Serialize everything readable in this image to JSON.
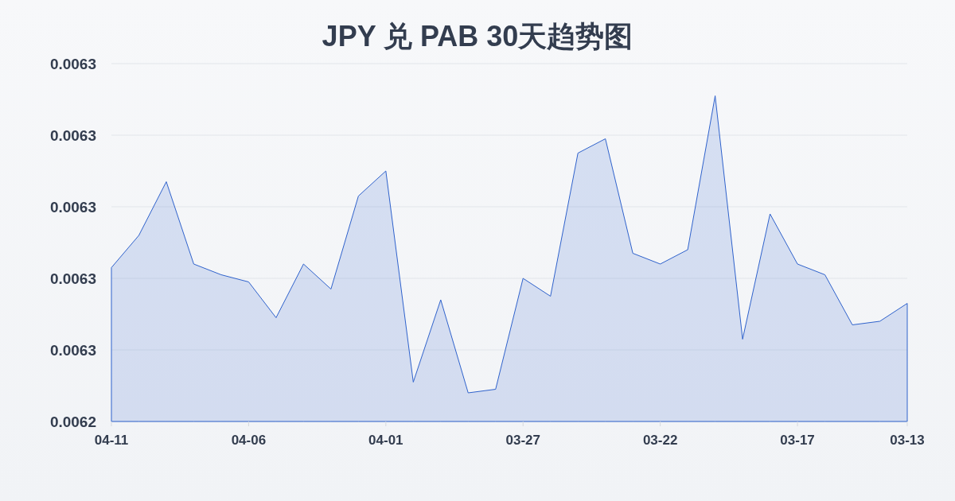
{
  "chart_data": {
    "type": "area",
    "title": "JPY 兑 PAB 30天趋势图",
    "categories": [
      "04-11",
      null,
      null,
      null,
      null,
      "04-06",
      null,
      null,
      null,
      null,
      "04-01",
      null,
      null,
      null,
      null,
      "03-27",
      null,
      null,
      null,
      null,
      "03-22",
      null,
      null,
      null,
      null,
      "03-17",
      null,
      null,
      null,
      "03-13"
    ],
    "series": [
      {
        "color": "#2f62cc",
        "values": [
          0.006283,
          0.006292,
          0.006307,
          0.006284,
          0.006281,
          0.006279,
          0.006269,
          0.006284,
          0.006277,
          0.006303,
          0.00631,
          0.006251,
          0.006274,
          0.006248,
          0.006249,
          0.00628,
          0.006275,
          0.006315,
          0.006319,
          0.006287,
          0.006284,
          0.006288,
          0.006331,
          0.006263,
          0.006298,
          0.006284,
          0.006281,
          0.006267,
          0.006268,
          0.006273
        ]
      }
    ],
    "ylim": [
      0.00624,
      0.00634
    ],
    "yticks": [
      {
        "value": 0.00624,
        "label": "0.0062"
      },
      {
        "value": 0.00626,
        "label": "0.0063"
      },
      {
        "value": 0.00628,
        "label": "0.0063"
      },
      {
        "value": 0.0063,
        "label": "0.0063"
      },
      {
        "value": 0.00632,
        "label": "0.0063"
      },
      {
        "value": 0.00634,
        "label": "0.0063"
      }
    ],
    "grid": "y"
  }
}
